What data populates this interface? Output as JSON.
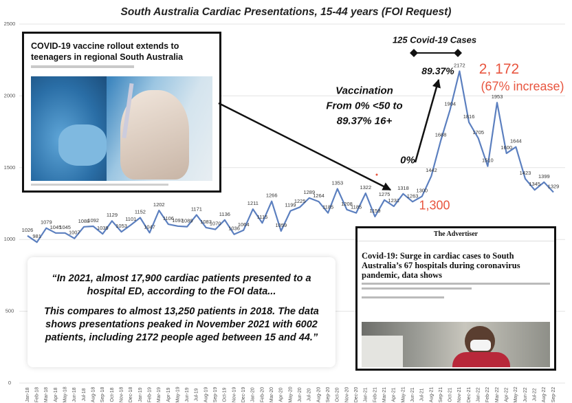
{
  "chart_data": {
    "type": "line",
    "title": "South Australia Cardiac Presentations, 15-44 years (FOI   Request)",
    "categories": [
      "Jan-18",
      "Feb-18",
      "Mar-18",
      "Apr-18",
      "May-18",
      "Jun-18",
      "Jul-18",
      "Aug-18",
      "Sep-18",
      "Oct-18",
      "Nov-18",
      "Dec-18",
      "Jan-19",
      "Feb-19",
      "Mar-19",
      "Apr-19",
      "May-19",
      "Jun-19",
      "Jul-19",
      "Aug-19",
      "Sep-19",
      "Oct-19",
      "Nov-19",
      "Dec-19",
      "Jan-20",
      "Feb-20",
      "Mar-20",
      "Apr-20",
      "May-20",
      "Jun-20",
      "Jul-20",
      "Aug-20",
      "Sep-20",
      "Oct-20",
      "Nov-20",
      "Dec-20",
      "Jan-21",
      "Feb-21",
      "Mar-21",
      "Apr-21",
      "May-21",
      "Jun-21",
      "Jul-21",
      "Aug-21",
      "Sep-21",
      "Oct-21",
      "Nov-21",
      "Dec-21",
      "Jan-22",
      "Feb-22",
      "Mar-22",
      "Apr-22",
      "May-22",
      "Jun-22",
      "Jul-22",
      "Aug-22",
      "Sep-22"
    ],
    "values": [
      1026,
      981,
      1079,
      1045,
      1045,
      1007,
      1088,
      1092,
      1039,
      1129,
      1053,
      1101,
      1152,
      1047,
      1202,
      1106,
      1093,
      1089,
      1171,
      1083,
      1070,
      1136,
      1036,
      1064,
      1211,
      1115,
      1266,
      1059,
      1199,
      1225,
      1289,
      1264,
      1185,
      1353,
      1208,
      1185,
      1322,
      1159,
      1275,
      1231,
      1318,
      1263,
      1300,
      1442,
      1688,
      1904,
      2172,
      1816,
      1705,
      1510,
      1953,
      1600,
      1644,
      1423,
      1345,
      1399,
      1329
    ],
    "color": "#5b7fbf",
    "ylim": [
      0,
      2500
    ],
    "yticks": [
      0,
      500,
      1000,
      1500,
      2000,
      2500
    ],
    "grid": true,
    "annotations": [
      "125 Covid-19 Cases",
      "89.37%",
      "2, 172",
      "(67% increase)",
      "Vaccination",
      "From 0% <50 to",
      "89.37% 16+",
      "0%",
      "1,300"
    ],
    "quote": [
      "“In 2021, almost 17,900 cardiac patients presented to a hospital ED, according to the FOI data...",
      "This compares to almost 13,250 patients in 2018. The data shows presentations peaked in November 2021 with 6002 patients, including 2172 people aged between 15 and 44.”"
    ]
  },
  "articles": [
    {
      "headline": "COVID-19 vaccine rollout extends to teenagers in regional South Australia"
    },
    {
      "masthead": "The Advertiser",
      "headline": "Covid-19: Surge in cardiac cases to South Australia’s 67 hospitals during coronavirus pandemic, data shows"
    }
  ]
}
